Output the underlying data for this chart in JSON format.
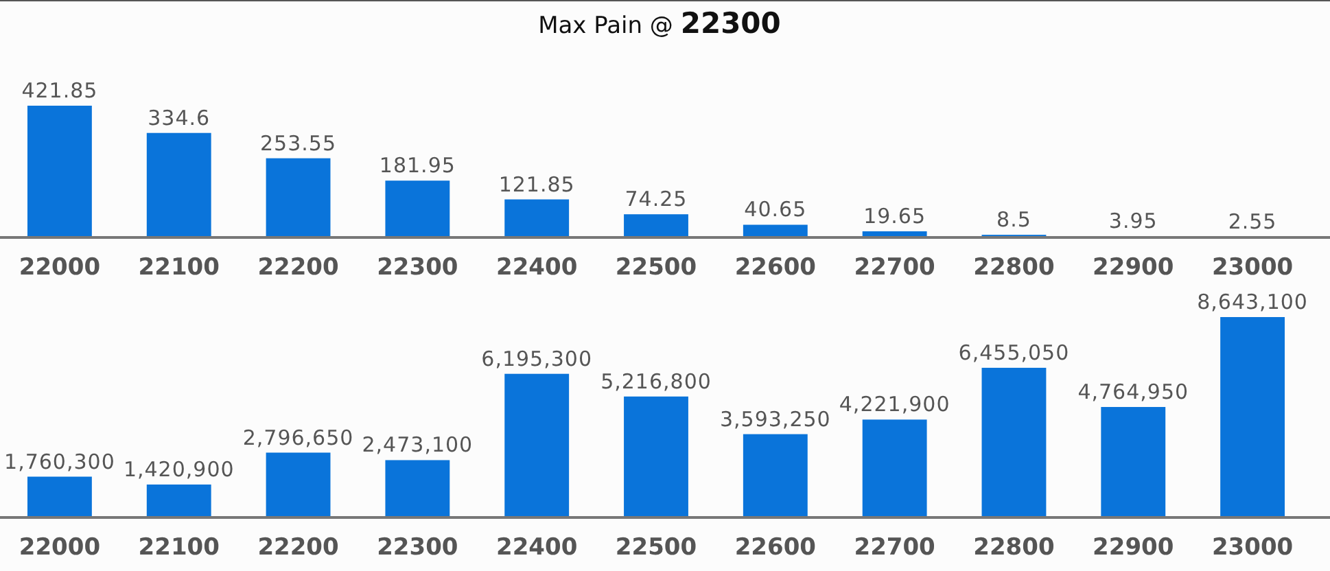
{
  "chart_data": [
    {
      "type": "bar",
      "title": "Max Pain @ 22300",
      "categories": [
        "22000",
        "22100",
        "22200",
        "22300",
        "22400",
        "22500",
        "22600",
        "22700",
        "22800",
        "22900",
        "23000"
      ],
      "values": [
        421.85,
        334.6,
        253.55,
        181.95,
        121.85,
        74.25,
        40.65,
        19.65,
        8.5,
        3.95,
        2.55
      ],
      "color": "#0a74da",
      "value_labels": [
        "421.85",
        "334.6",
        "253.55",
        "181.95",
        "121.85",
        "74.25",
        "40.65",
        "19.65",
        "8.5",
        "3.95",
        "2.55"
      ],
      "tick_labels": "x"
    },
    {
      "type": "bar",
      "categories": [
        "22000",
        "22100",
        "22200",
        "22300",
        "22400",
        "22500",
        "22600",
        "22700",
        "22800",
        "22900",
        "23000"
      ],
      "values": [
        1760300,
        1420900,
        2796650,
        2473100,
        6195300,
        5216800,
        3593250,
        4221900,
        6455050,
        4764950,
        8643100
      ],
      "color": "#0a74da",
      "value_labels": [
        "1,760,300",
        "1,420,900",
        "2,796,650",
        "2,473,100",
        "6,195,300",
        "5,216,800",
        "3,593,250",
        "4,221,900",
        "6,455,050",
        "4,764,950",
        "8,643,100"
      ],
      "tick_labels": "x"
    }
  ]
}
